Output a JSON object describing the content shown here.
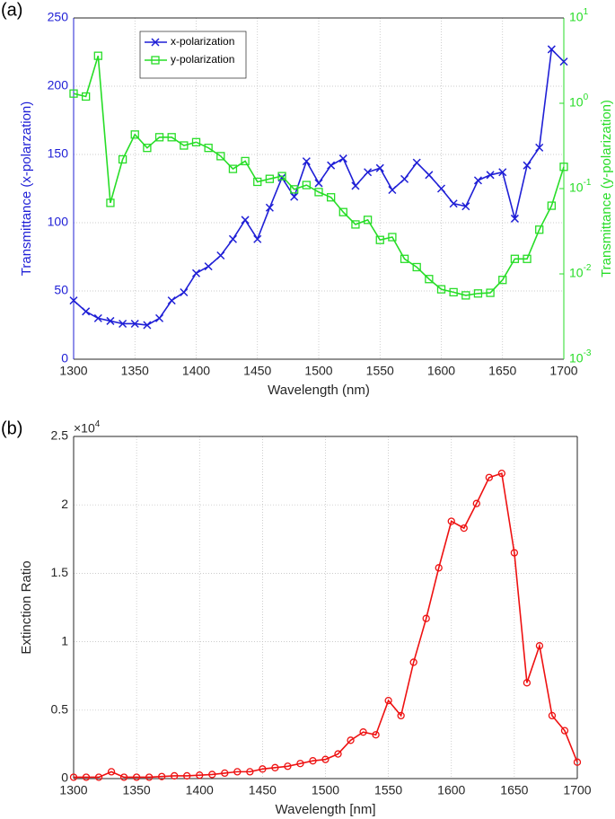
{
  "chart_data": [
    {
      "type": "line",
      "panel_label": "(a)",
      "xlabel": "Wavelength (nm)",
      "ylabel": "Transmittance (x-polarzation)",
      "y2label": "Transmittance (y-polarization)",
      "x": [
        1300,
        1310,
        1320,
        1330,
        1340,
        1350,
        1360,
        1370,
        1380,
        1390,
        1400,
        1410,
        1420,
        1430,
        1440,
        1450,
        1460,
        1470,
        1480,
        1490,
        1500,
        1510,
        1520,
        1530,
        1540,
        1550,
        1560,
        1570,
        1580,
        1590,
        1600,
        1610,
        1620,
        1630,
        1640,
        1650,
        1660,
        1670,
        1680,
        1690,
        1700
      ],
      "xlim": [
        1300,
        1700
      ],
      "xticks": [
        1300,
        1350,
        1400,
        1450,
        1500,
        1550,
        1600,
        1650,
        1700
      ],
      "ylim": [
        0,
        250
      ],
      "yticks": [
        0,
        50,
        100,
        150,
        200,
        250
      ],
      "y2lim": [
        0.001,
        10
      ],
      "y2scale": "log",
      "y2ticks": [
        {
          "value": 0.001,
          "label": "10",
          "exponent": "-3"
        },
        {
          "value": 0.01,
          "label": "10",
          "exponent": "-2"
        },
        {
          "value": 0.1,
          "label": "10",
          "exponent": "-1"
        },
        {
          "value": 1,
          "label": "10",
          "exponent": "0"
        },
        {
          "value": 10,
          "label": "10",
          "exponent": "1"
        }
      ],
      "grid": true,
      "legend": "upper left",
      "series": [
        {
          "name": "x-polarization",
          "color": "#1f1fd6",
          "marker": "x",
          "values": [
            43,
            35,
            30,
            28,
            26,
            26,
            25,
            30,
            43,
            49,
            63,
            68,
            76,
            88,
            102,
            88,
            111,
            133,
            119,
            145,
            129,
            142,
            147,
            127,
            137,
            140,
            124,
            132,
            144,
            135,
            125,
            114,
            112,
            131,
            135,
            137,
            103,
            142,
            155,
            227,
            218
          ]
        },
        {
          "name": "y-polarization",
          "color": "#27dd27",
          "marker": "square",
          "axis": "y2",
          "values": [
            1.3,
            1.2,
            3.6,
            0.068,
            0.22,
            0.43,
            0.3,
            0.4,
            0.4,
            0.32,
            0.35,
            0.3,
            0.24,
            0.17,
            0.21,
            0.12,
            0.13,
            0.14,
            0.098,
            0.11,
            0.091,
            0.079,
            0.053,
            0.038,
            0.043,
            0.025,
            0.027,
            0.015,
            0.012,
            0.0087,
            0.0066,
            0.0061,
            0.0056,
            0.0059,
            0.006,
            0.0085,
            0.015,
            0.015,
            0.033,
            0.063,
            0.18
          ]
        }
      ]
    },
    {
      "type": "line",
      "panel_label": "(b)",
      "xlabel": "Wavelength [nm]",
      "ylabel": "Extinction Ratio",
      "y_multiplier": {
        "base": "×10",
        "exponent": "4"
      },
      "x": [
        1300,
        1310,
        1320,
        1330,
        1340,
        1350,
        1360,
        1370,
        1380,
        1390,
        1400,
        1410,
        1420,
        1430,
        1440,
        1450,
        1460,
        1470,
        1480,
        1490,
        1500,
        1510,
        1520,
        1530,
        1540,
        1550,
        1560,
        1570,
        1580,
        1590,
        1600,
        1610,
        1620,
        1630,
        1640,
        1650,
        1660,
        1670,
        1680,
        1690,
        1700
      ],
      "xlim": [
        1300,
        1700
      ],
      "xticks": [
        1300,
        1350,
        1400,
        1450,
        1500,
        1550,
        1600,
        1650,
        1700
      ],
      "ylim": [
        0,
        2.5
      ],
      "yticks": [
        0,
        0.5,
        1,
        1.5,
        2,
        2.5
      ],
      "grid": true,
      "series": [
        {
          "color": "#ee1111",
          "marker": "circle",
          "values": [
            0.01,
            0.01,
            0.01,
            0.05,
            0.01,
            0.01,
            0.01,
            0.015,
            0.02,
            0.02,
            0.025,
            0.03,
            0.04,
            0.05,
            0.05,
            0.07,
            0.08,
            0.09,
            0.11,
            0.13,
            0.14,
            0.18,
            0.28,
            0.34,
            0.32,
            0.57,
            0.46,
            0.85,
            1.17,
            1.54,
            1.88,
            1.83,
            2.01,
            2.2,
            2.23,
            1.65,
            0.7,
            0.97,
            0.46,
            0.35,
            0.12
          ]
        }
      ]
    }
  ]
}
